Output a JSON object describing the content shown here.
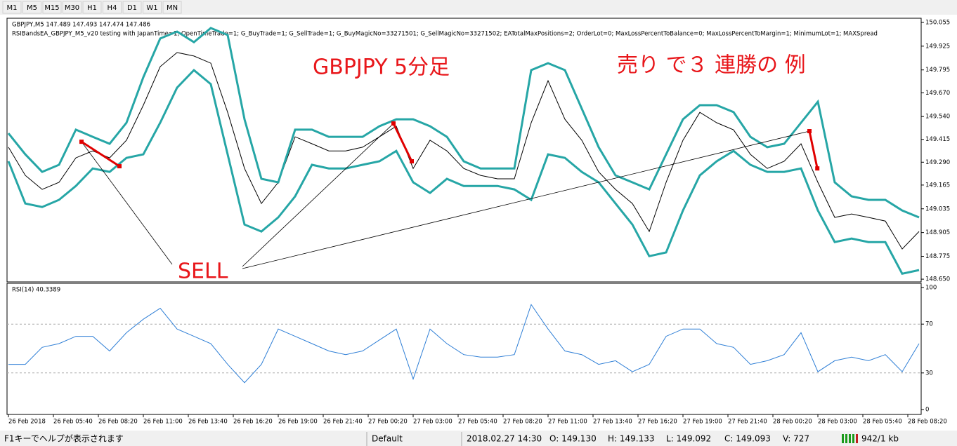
{
  "toolbar": [
    "M1",
    "M5",
    "M15",
    "M30",
    "H1",
    "H4",
    "D1",
    "W1",
    "MN"
  ],
  "status": {
    "help": "F1キーでヘルプが表示されます",
    "profile": "Default",
    "time": "2018.02.27 14:30",
    "open": "O: 149.130",
    "high": "H: 149.133",
    "low": "L: 149.092",
    "close": "C: 149.093",
    "volume": "V: 727",
    "traffic": "942/1 kb"
  },
  "chart_data": [
    {
      "type": "line",
      "title": "GBPJPY,M5  147.489 147.493 147.474 147.486",
      "subtitle": "RSIBandsEA_GBPJPY_M5_v20 testing with JapanTime=1; OpenTimeTrade=1; G_BuyTrade=1; G_SellTrade=1; G_BuyMagicNo=33271501; G_SellMagicNo=33271502; EATotalMaxPositions=2; OrderLot=0; MaxLossPercentToBalance=0; MaxLossPercentToMargin=1; MinimumLot=1; MAXSpread",
      "annotations": [
        "GBPJPY 5分足",
        "売り で３ 連勝の 例",
        "SELL"
      ],
      "x": [
        0,
        60,
        120,
        180,
        240,
        300,
        360,
        420,
        480,
        540,
        600,
        660,
        720,
        780,
        840,
        900,
        960,
        1020,
        1080,
        1140,
        1200,
        1260,
        1320,
        1380,
        1440,
        1500,
        1560,
        1620,
        1680,
        1740,
        1800,
        1860,
        1920,
        1980,
        2040,
        2100,
        2160,
        2220,
        2280,
        2340,
        2400,
        2460,
        2520,
        2580,
        2640,
        2700,
        2760,
        2820,
        2880,
        2940,
        3000,
        3060,
        3120,
        3180,
        3240
      ],
      "series": [
        {
          "color": "#000000",
          "values": [
            149.372,
            149.218,
            149.141,
            149.18,
            149.314,
            149.352,
            149.314,
            149.41,
            149.602,
            149.813,
            149.89,
            149.871,
            149.832,
            149.563,
            149.256,
            149.064,
            149.18,
            149.429,
            149.391,
            149.352,
            149.352,
            149.372,
            149.429,
            149.487,
            149.256,
            149.41,
            149.352,
            149.256,
            149.218,
            149.199,
            149.199,
            149.506,
            149.736,
            149.525,
            149.41,
            149.237,
            149.141,
            149.064,
            148.911,
            149.18,
            149.41,
            149.563,
            149.506,
            149.467,
            149.333,
            149.256,
            149.295,
            149.391,
            149.18,
            148.988,
            149.007,
            148.988,
            148.968,
            148.815,
            148.911
          ]
        },
        {
          "color": "#26a6a6",
          "values": [
            149.448,
            149.333,
            149.237,
            149.276,
            149.468,
            149.429,
            149.391,
            149.506,
            149.755,
            149.967,
            150.005,
            149.947,
            150.024,
            149.986,
            149.525,
            149.199,
            149.18,
            149.468,
            149.468,
            149.429,
            149.429,
            149.429,
            149.487,
            149.525,
            149.525,
            149.487,
            149.429,
            149.295,
            149.256,
            149.256,
            149.256,
            149.794,
            149.832,
            149.794,
            149.583,
            149.372,
            149.218,
            149.18,
            149.141,
            149.333,
            149.525,
            149.602,
            149.602,
            149.564,
            149.429,
            149.372,
            149.391,
            149.506,
            149.621,
            149.18,
            149.103,
            149.084,
            149.084,
            149.026,
            148.988
          ]
        },
        {
          "color": "#26a6a6",
          "values": [
            149.295,
            149.064,
            149.045,
            149.084,
            149.16,
            149.256,
            149.237,
            149.314,
            149.333,
            149.506,
            149.698,
            149.794,
            149.717,
            149.333,
            148.949,
            148.911,
            148.988,
            149.103,
            149.276,
            149.256,
            149.256,
            149.276,
            149.295,
            149.352,
            149.18,
            149.122,
            149.199,
            149.16,
            149.16,
            149.16,
            149.141,
            149.084,
            149.333,
            149.314,
            149.237,
            149.18,
            149.064,
            148.949,
            148.776,
            148.796,
            149.026,
            149.218,
            149.295,
            149.352,
            149.276,
            149.237,
            149.237,
            149.256,
            149.026,
            148.853,
            148.872,
            148.853,
            148.853,
            148.68,
            148.7
          ]
        }
      ],
      "trades": [
        {
          "color": "#e00000",
          "x": [
            260,
            395
          ],
          "values": [
            149.402,
            149.268
          ]
        },
        {
          "color": "#e00000",
          "x": [
            1370,
            1435
          ],
          "values": [
            149.502,
            149.295
          ]
        },
        {
          "color": "#e00000",
          "x": [
            2850,
            2878
          ],
          "values": [
            149.46,
            149.256
          ]
        }
      ],
      "xlim": [
        0,
        3245
      ],
      "xticks": [
        {
          "value": 0,
          "label": "26 Feb 2018"
        },
        {
          "value": 160,
          "label": "26 Feb 05:40"
        },
        {
          "value": 320,
          "label": "26 Feb 08:20"
        },
        {
          "value": 480,
          "label": "26 Feb 11:00"
        },
        {
          "value": 640,
          "label": "26 Feb 13:40"
        },
        {
          "value": 800,
          "label": "26 Feb 16:20"
        },
        {
          "value": 960,
          "label": "26 Feb 19:00"
        },
        {
          "value": 1120,
          "label": "26 Feb 21:40"
        },
        {
          "value": 1280,
          "label": "27 Feb 00:20"
        },
        {
          "value": 1440,
          "label": "27 Feb 03:00"
        },
        {
          "value": 1600,
          "label": "27 Feb 05:40"
        },
        {
          "value": 1760,
          "label": "27 Feb 08:20"
        },
        {
          "value": 1920,
          "label": "27 Feb 11:00"
        },
        {
          "value": 2080,
          "label": "27 Feb 13:40"
        },
        {
          "value": 2240,
          "label": "27 Feb 16:20"
        },
        {
          "value": 2400,
          "label": "27 Feb 19:00"
        },
        {
          "value": 2560,
          "label": "27 Feb 21:40"
        },
        {
          "value": 2720,
          "label": "28 Feb 00:20"
        },
        {
          "value": 2880,
          "label": "28 Feb 03:00"
        },
        {
          "value": 3040,
          "label": "28 Feb 05:40"
        },
        {
          "value": 3200,
          "label": "28 Feb 08:20"
        }
      ],
      "ylim": [
        148.635,
        150.074
      ],
      "yticks": [
        150.055,
        149.925,
        149.795,
        {
          "value": 149.67,
          "label": "149.670"
        },
        {
          "value": 149.54,
          "label": "149.540"
        },
        149.415,
        {
          "value": 149.29,
          "label": "149.290"
        },
        149.165,
        149.035,
        148.905,
        148.775,
        {
          "value": 148.65,
          "label": "148.650"
        }
      ]
    },
    {
      "type": "line",
      "title": "RSI(14) 40.3389",
      "x": [
        0,
        60,
        120,
        180,
        240,
        300,
        360,
        420,
        480,
        540,
        600,
        660,
        720,
        780,
        840,
        900,
        960,
        1020,
        1080,
        1140,
        1200,
        1260,
        1320,
        1380,
        1440,
        1500,
        1560,
        1620,
        1680,
        1740,
        1800,
        1860,
        1920,
        1980,
        2040,
        2100,
        2160,
        2220,
        2280,
        2340,
        2400,
        2460,
        2520,
        2580,
        2640,
        2700,
        2760,
        2820,
        2880,
        2940,
        3000,
        3060,
        3120,
        3180,
        3240
      ],
      "series": [
        {
          "color": "#2f7fd6",
          "values": [
            37,
            37,
            51,
            54,
            60,
            60,
            48,
            63,
            74,
            83,
            66,
            60,
            54,
            37,
            22,
            37,
            66,
            60,
            54,
            48,
            45,
            48,
            57,
            66,
            25,
            66,
            54,
            45,
            43,
            43,
            45,
            86,
            66,
            48,
            45,
            37,
            40,
            31,
            37,
            60,
            66,
            66,
            54,
            51,
            37,
            40,
            45,
            63,
            31,
            40,
            43,
            40,
            45,
            31,
            54
          ]
        }
      ],
      "xlim": [
        0,
        3245
      ],
      "ylim": [
        0,
        100
      ],
      "yticks": [
        100,
        70,
        30,
        0
      ]
    }
  ]
}
